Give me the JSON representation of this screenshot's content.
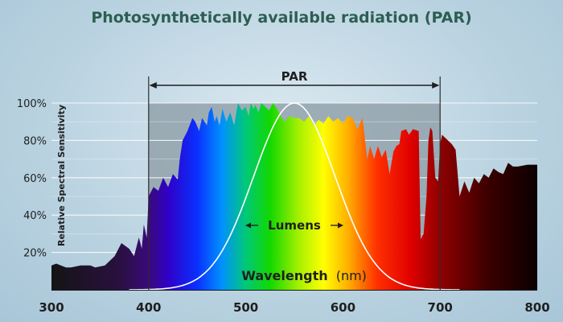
{
  "chart_data": {
    "type": "area",
    "title": "Photosynthetically available radiation (PAR)",
    "xlabel_main": "Wavelength",
    "xlabel_unit": "(nm)",
    "ylabel": "Relative Spectral Sensitivity",
    "xlim": [
      300,
      800
    ],
    "ylim": [
      0,
      100
    ],
    "x_ticks": [
      300,
      400,
      500,
      600,
      700,
      800
    ],
    "x_tick_labels": [
      "300",
      "400",
      "500",
      "600",
      "700",
      "800"
    ],
    "y_ticks": [
      20,
      40,
      60,
      80,
      100
    ],
    "y_tick_labels": [
      "20%",
      "40%",
      "60%",
      "80%",
      "100%"
    ],
    "grid": true,
    "par_range": [
      400,
      700
    ],
    "par_label": "PAR",
    "lumens_label": "Lumens",
    "spectrum": {
      "x": [
        300,
        305,
        315,
        320,
        330,
        340,
        345,
        355,
        365,
        372,
        380,
        385,
        388,
        390,
        393,
        395,
        398,
        400,
        402,
        405,
        410,
        415,
        420,
        425,
        430,
        432,
        435,
        440,
        445,
        448,
        452,
        455,
        460,
        462,
        465,
        468,
        470,
        473,
        476,
        480,
        484,
        488,
        492,
        496,
        500,
        503,
        505,
        508,
        510,
        513,
        516,
        520,
        524,
        528,
        532,
        536,
        540,
        545,
        550,
        555,
        560,
        565,
        570,
        575,
        580,
        585,
        590,
        595,
        600,
        605,
        610,
        615,
        620,
        625,
        628,
        632,
        636,
        640,
        644,
        648,
        652,
        655,
        658,
        660,
        665,
        668,
        672,
        678,
        680,
        683,
        686,
        688,
        690,
        692,
        695,
        698,
        700,
        702,
        704,
        708,
        712,
        716,
        720,
        725,
        730,
        735,
        740,
        745,
        750,
        755,
        760,
        765,
        770,
        775,
        780,
        790,
        800
      ],
      "y": [
        13,
        14,
        12,
        12,
        13,
        13,
        12,
        13,
        18,
        25,
        22,
        18,
        24,
        28,
        22,
        35,
        28,
        50,
        52,
        55,
        53,
        60,
        55,
        62,
        59,
        70,
        80,
        85,
        92,
        90,
        85,
        92,
        88,
        95,
        98,
        90,
        93,
        88,
        97,
        90,
        95,
        88,
        100,
        96,
        98,
        93,
        100,
        97,
        99,
        95,
        100,
        98,
        96,
        100,
        97,
        93,
        90,
        93,
        92,
        92,
        90,
        93,
        88,
        91,
        89,
        93,
        90,
        92,
        89,
        93,
        92,
        86,
        92,
        70,
        77,
        70,
        77,
        71,
        75,
        62,
        74,
        77,
        78,
        85,
        86,
        83,
        86,
        85,
        27,
        30,
        50,
        80,
        87,
        85,
        60,
        58,
        78,
        83,
        82,
        80,
        78,
        75,
        50,
        58,
        52,
        60,
        57,
        62,
        60,
        65,
        63,
        62,
        68,
        66,
        66,
        67,
        67
      ]
    },
    "lumens_curve": {
      "peak_x": 550,
      "sigma": 42,
      "peak_y": 100
    },
    "colors": {
      "title": "#2c5e52",
      "text": "#1f1f1f",
      "par_band": "#8a9aa3",
      "grid": "#ffffff",
      "curve": "#ffffff"
    }
  }
}
